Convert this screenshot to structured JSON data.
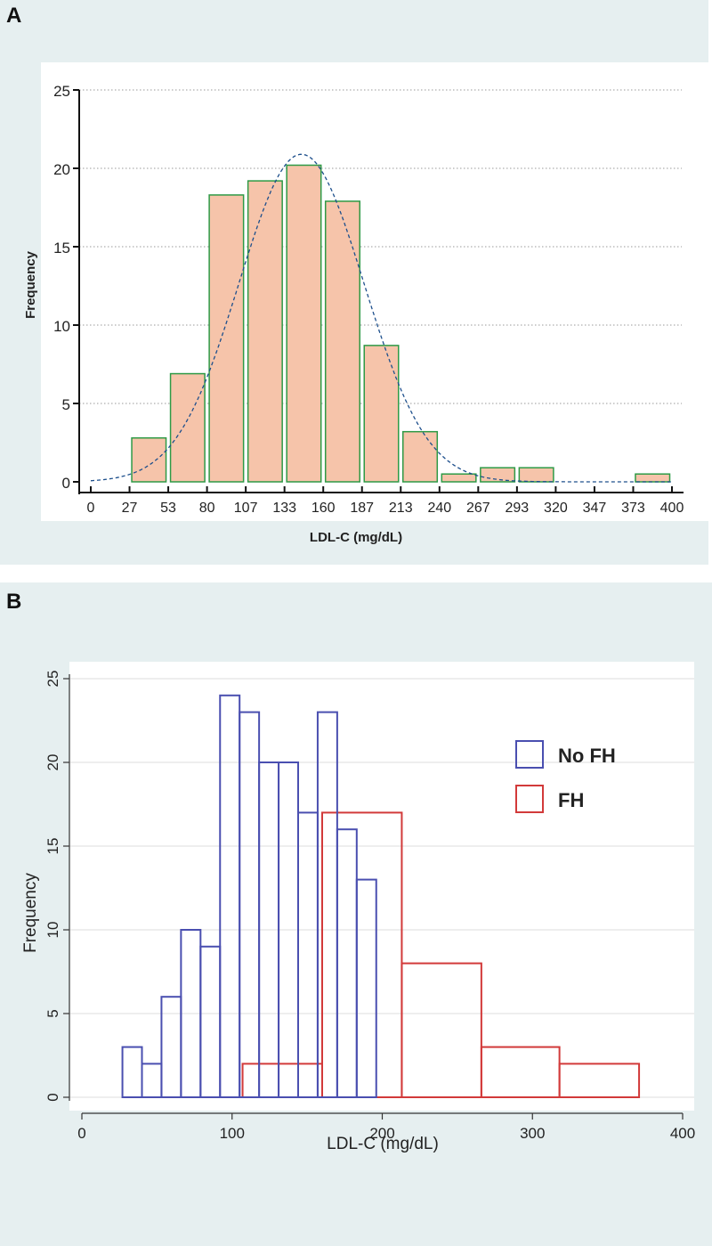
{
  "panels": {
    "a": {
      "label": "A"
    },
    "b": {
      "label": "B"
    }
  },
  "chart_data": [
    {
      "type": "bar",
      "panel": "A",
      "title": "",
      "xlabel": "LDL-C (mg/dL)",
      "ylabel": "Frequency",
      "xlim": [
        0,
        400
      ],
      "ylim": [
        0,
        25
      ],
      "yticks": [
        0,
        5,
        10,
        15,
        20,
        25
      ],
      "xtick_labels": [
        "0",
        "27",
        "53",
        "80",
        "107",
        "133",
        "160",
        "187",
        "213",
        "240",
        "267",
        "293",
        "320",
        "347",
        "373",
        "400"
      ],
      "grid": true,
      "bin_edges": [
        0,
        26.67,
        53.33,
        80,
        106.67,
        133.33,
        160,
        186.67,
        213.33,
        240,
        266.67,
        293.33,
        320,
        346.67,
        373.33,
        400
      ],
      "values": [
        0,
        2.8,
        6.9,
        18.3,
        19.2,
        20.2,
        17.9,
        8.7,
        3.2,
        0.5,
        0.9,
        0.9,
        0,
        0,
        0.5
      ],
      "bar_fill": "#f6c4aa",
      "bar_edge": "#2e9a46",
      "curve": {
        "kind": "normal",
        "mean": 145,
        "sd": 43,
        "peak": 20.9,
        "color": "#1d4f8c",
        "style": "dashed"
      }
    },
    {
      "type": "histogram",
      "panel": "B",
      "title": "",
      "xlabel": "LDL-C (mg/dL)",
      "ylabel": "Frequency",
      "xlim": [
        -8,
        402
      ],
      "ylim": [
        0,
        25
      ],
      "xticks": [
        0,
        100,
        200,
        300,
        400
      ],
      "yticks": [
        0,
        5,
        10,
        15,
        20,
        25
      ],
      "legend": "top-right",
      "series": [
        {
          "name": "No FH",
          "color": "#4a4fb0",
          "bins": [
            {
              "x0": 27,
              "x1": 40,
              "value": 3
            },
            {
              "x0": 40,
              "x1": 53,
              "value": 2
            },
            {
              "x0": 53,
              "x1": 66,
              "value": 6
            },
            {
              "x0": 66,
              "x1": 79,
              "value": 10
            },
            {
              "x0": 79,
              "x1": 92,
              "value": 9
            },
            {
              "x0": 92,
              "x1": 105,
              "value": 24
            },
            {
              "x0": 105,
              "x1": 118,
              "value": 23
            },
            {
              "x0": 118,
              "x1": 131,
              "value": 20
            },
            {
              "x0": 131,
              "x1": 144,
              "value": 20
            },
            {
              "x0": 144,
              "x1": 157,
              "value": 17
            },
            {
              "x0": 157,
              "x1": 170,
              "value": 23
            },
            {
              "x0": 170,
              "x1": 183,
              "value": 16
            },
            {
              "x0": 183,
              "x1": 196,
              "value": 13
            }
          ]
        },
        {
          "name": "FH",
          "color": "#d23a3a",
          "bins": [
            {
              "x0": 107,
              "x1": 160,
              "value": 2
            },
            {
              "x0": 160,
              "x1": 213,
              "value": 17
            },
            {
              "x0": 213,
              "x1": 266,
              "value": 8
            },
            {
              "x0": 266,
              "x1": 318,
              "value": 3
            },
            {
              "x0": 318,
              "x1": 371,
              "value": 2
            }
          ]
        }
      ]
    }
  ]
}
